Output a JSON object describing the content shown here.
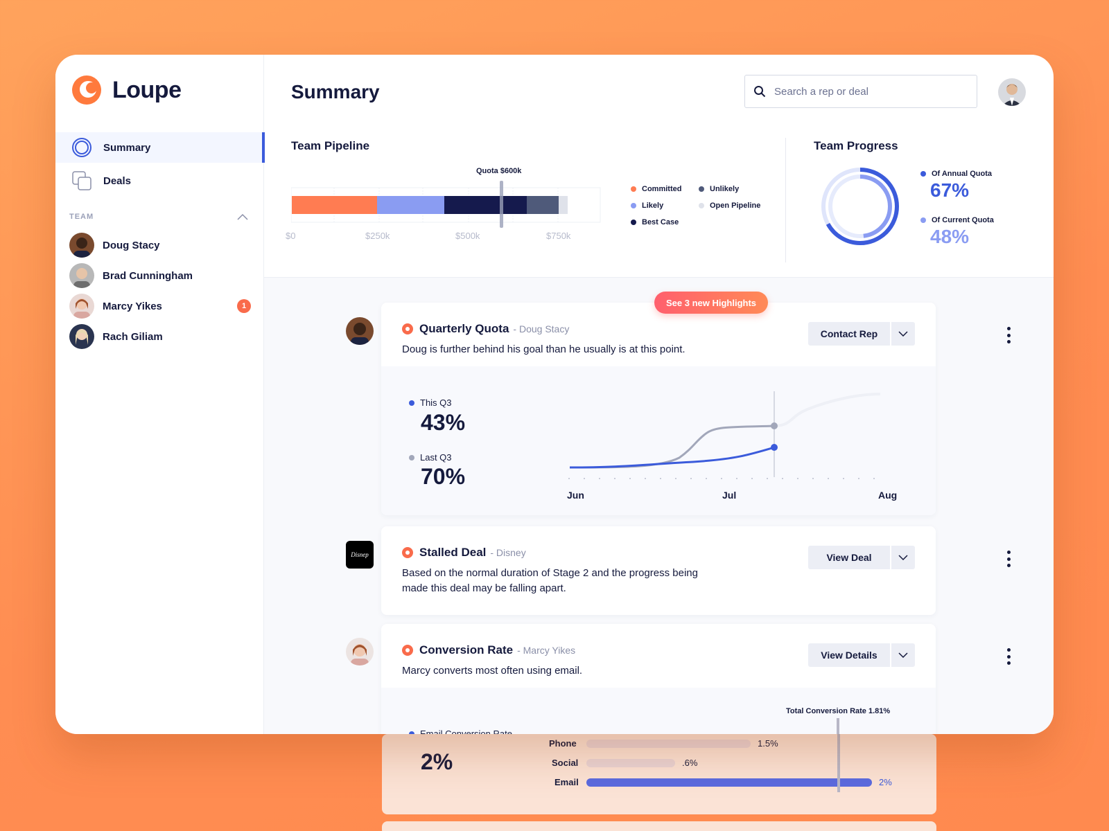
{
  "app": {
    "name": "Loupe"
  },
  "colors": {
    "accent": "#3b5bdb",
    "brand": "#ff7a3d",
    "alert": "#f96b4b"
  },
  "nav": [
    {
      "label": "Summary",
      "icon": "summary-ring-icon",
      "active": true
    },
    {
      "label": "Deals",
      "icon": "deals-stack-icon",
      "active": false
    }
  ],
  "team": {
    "heading": "TEAM",
    "members": [
      {
        "name": "Doug Stacy",
        "badge": ""
      },
      {
        "name": "Brad Cunningham",
        "badge": ""
      },
      {
        "name": "Marcy Yikes",
        "badge": "1"
      },
      {
        "name": "Rach Giliam",
        "badge": ""
      }
    ]
  },
  "header": {
    "title": "Summary",
    "search_placeholder": "Search a rep or deal"
  },
  "pipeline": {
    "title": "Team Pipeline",
    "quota_label": "Quota $600k",
    "ticks": [
      "$0",
      "$250k",
      "$500k",
      "$750k"
    ],
    "legend": [
      "Committed",
      "Unlikely",
      "Likely",
      "Open Pipeline",
      "Best Case"
    ]
  },
  "progress": {
    "title": "Team Progress",
    "annual_label": "Of Annual Quota",
    "annual_value": "67%",
    "current_label": "Of Current Quota",
    "current_value": "48%"
  },
  "highlights_pill": "See 3 new Highlights",
  "cards": [
    {
      "title": "Quarterly Quota",
      "subject": "- Doug Stacy",
      "description": "Doug is further behind his goal than he usually is at this point.",
      "button": "Contact Rep",
      "stats": [
        {
          "label": "This Q3",
          "value": "43%"
        },
        {
          "label": "Last Q3",
          "value": "70%"
        }
      ],
      "x_labels": [
        "Jun",
        "Jul",
        "Aug"
      ]
    },
    {
      "title": "Stalled Deal",
      "subject": "- Disney",
      "description_lines": [
        "Based on the normal duration of Stage 2 and the progress being",
        "made this deal may be falling apart."
      ],
      "button": "View Deal",
      "logo_text": "Disnep"
    },
    {
      "title": "Conversion Rate",
      "subject": "- Marcy Yikes",
      "description": "Marcy converts most often using email.",
      "button": "View Details",
      "stat": {
        "label": "Email Conversion Rate",
        "value": "2%"
      },
      "total_label": "Total Conversion Rate 1.81%",
      "bars": [
        {
          "name": "Phone",
          "value_label": "1.5%"
        },
        {
          "name": "Social",
          "value_label": ".6%"
        },
        {
          "name": "Email",
          "value_label": "2%"
        }
      ]
    }
  ]
}
